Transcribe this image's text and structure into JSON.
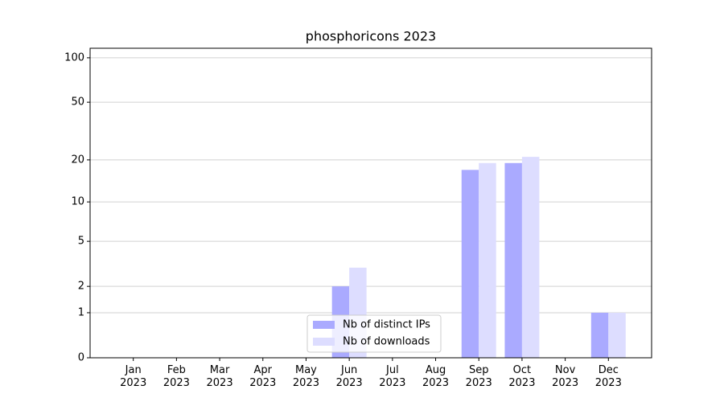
{
  "chart_data": {
    "type": "bar",
    "title": "phosphoricons 2023",
    "yscale": "log1p",
    "categories": [
      "Jan 2023",
      "Feb 2023",
      "Mar 2023",
      "Apr 2023",
      "May 2023",
      "Jun 2023",
      "Jul 2023",
      "Aug 2023",
      "Sep 2023",
      "Oct 2023",
      "Nov 2023",
      "Dec 2023"
    ],
    "series": [
      {
        "name": "Nb of distinct IPs",
        "color": "#aaaaff",
        "values": [
          0,
          0,
          0,
          0,
          0,
          2,
          0,
          0,
          17,
          19,
          0,
          1
        ]
      },
      {
        "name": "Nb of downloads",
        "color": "#ddddff",
        "values": [
          0,
          0,
          0,
          0,
          0,
          3,
          0,
          0,
          19,
          21,
          0,
          1
        ]
      }
    ],
    "ylim": [
      0,
      116
    ],
    "yticks": [
      0,
      1,
      2,
      5,
      10,
      20,
      50,
      100
    ],
    "grid": true,
    "legend": "lower center"
  }
}
